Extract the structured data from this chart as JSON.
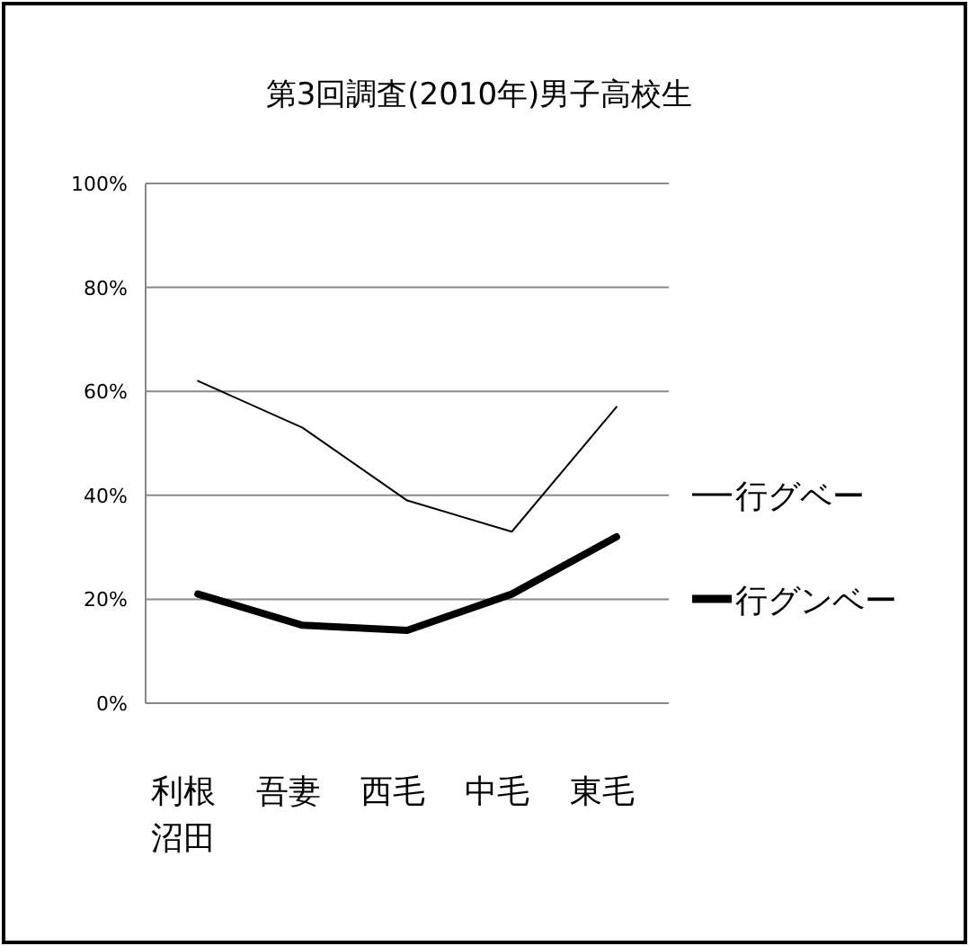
{
  "chart_data": {
    "type": "line",
    "title": "第3回調査(2010年)男子高校生",
    "categories": [
      "利根沼田",
      "吾妻",
      "西毛",
      "中毛",
      "東毛"
    ],
    "series": [
      {
        "name": "行グベー",
        "color": "#000000",
        "values": [
          62,
          53,
          39,
          33,
          57
        ]
      },
      {
        "name": "行グンベー",
        "color": "#000000",
        "values": [
          21,
          15,
          14,
          21,
          32
        ]
      }
    ],
    "ylim": [
      0,
      100
    ],
    "yticks": [
      {
        "value": 0,
        "label": "0%"
      },
      {
        "value": 20,
        "label": "20%"
      },
      {
        "value": 40,
        "label": "40%"
      },
      {
        "value": 60,
        "label": "60%"
      },
      {
        "value": 80,
        "label": "80%"
      },
      {
        "value": 100,
        "label": "100%"
      }
    ],
    "grid": "y",
    "legend": "right",
    "marker": "none",
    "line_style": "solid"
  }
}
